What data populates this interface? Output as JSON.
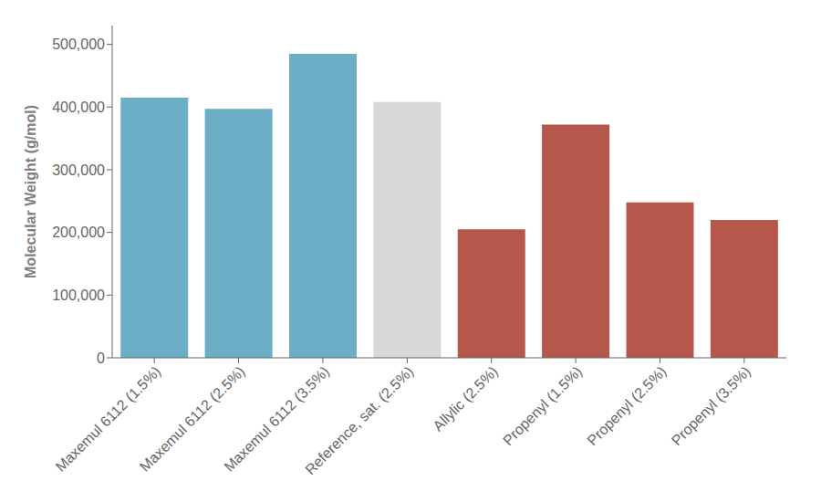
{
  "chart_data": {
    "type": "bar",
    "categories": [
      "Maxemul 6112 (1.5%)",
      "Maxemul 6112 (2.5%)",
      "Maxemul 6112 (3.5%)",
      "Reference, sat. (2.5%)",
      "Allylic (2.5%)",
      "Propenyl (1.5%)",
      "Propenyl (2.5%)",
      "Propenyl (3.5%)"
    ],
    "values": [
      415000,
      397000,
      485000,
      408000,
      205000,
      372000,
      248000,
      220000
    ],
    "colors": [
      "#6baec6",
      "#6baec6",
      "#6baec6",
      "#d8d8d8",
      "#b5574a",
      "#b5574a",
      "#b5574a",
      "#b5574a"
    ],
    "ylabel": "Molecular Weight (g/mol)",
    "ylim": [
      0,
      530000
    ],
    "yticks": [
      0,
      {
        "value": 100000,
        "label": "100,000"
      },
      {
        "value": 200000,
        "label": "200,000"
      },
      {
        "value": 300000,
        "label": "300,000"
      },
      {
        "value": 400000,
        "label": "400,000"
      },
      {
        "value": 500000,
        "label": "500,000"
      }
    ],
    "grid": false
  }
}
